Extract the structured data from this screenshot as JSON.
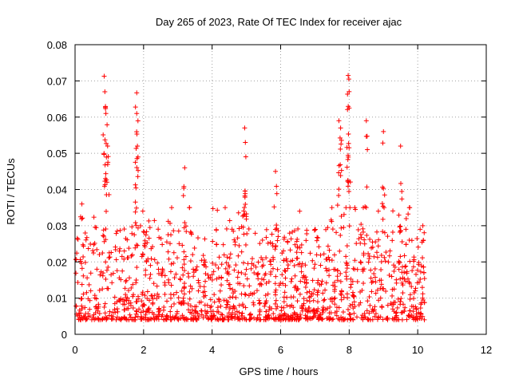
{
  "chart_data": {
    "type": "scatter",
    "title": "Day 265 of 2023, Rate Of TEC Index for receiver ajac",
    "xlabel": "GPS time / hours",
    "ylabel": "ROTI / TECUs",
    "xlim": [
      0,
      12
    ],
    "ylim": [
      0,
      0.08
    ],
    "xticks": [
      0,
      2,
      4,
      6,
      8,
      10,
      12
    ],
    "xtick_labels": [
      "0",
      "2",
      "4",
      "6",
      "8",
      "10",
      "12"
    ],
    "yticks": [
      0,
      0.01,
      0.02,
      0.03,
      0.04,
      0.05,
      0.06,
      0.07,
      0.08
    ],
    "ytick_labels": [
      "0",
      "0.01",
      "0.02",
      "0.03",
      "0.04",
      "0.05",
      "0.06",
      "0.07",
      "0.08"
    ],
    "grid": true,
    "marker": "+",
    "marker_color": "#ff0000",
    "series": [
      {
        "name": "ROTI",
        "x_range": [
          0.0,
          10.2
        ],
        "typical_range": [
          0.004,
          0.02
        ],
        "peaks": [
          {
            "x": 0.2,
            "y": 0.036
          },
          {
            "x": 0.85,
            "y": 0.0713
          },
          {
            "x": 0.87,
            "y": 0.067
          },
          {
            "x": 0.9,
            "y": 0.061
          },
          {
            "x": 0.95,
            "y": 0.052
          },
          {
            "x": 1.8,
            "y": 0.0667
          },
          {
            "x": 1.8,
            "y": 0.061
          },
          {
            "x": 1.82,
            "y": 0.052
          },
          {
            "x": 3.2,
            "y": 0.046
          },
          {
            "x": 4.95,
            "y": 0.057
          },
          {
            "x": 4.97,
            "y": 0.053
          },
          {
            "x": 5.85,
            "y": 0.045
          },
          {
            "x": 7.7,
            "y": 0.059
          },
          {
            "x": 7.75,
            "y": 0.057
          },
          {
            "x": 7.97,
            "y": 0.0715
          },
          {
            "x": 7.99,
            "y": 0.0705
          },
          {
            "x": 8.0,
            "y": 0.0625
          },
          {
            "x": 8.5,
            "y": 0.059
          },
          {
            "x": 9.0,
            "y": 0.056
          },
          {
            "x": 9.5,
            "y": 0.052
          },
          {
            "x": 10.15,
            "y": 0.03
          }
        ]
      }
    ]
  }
}
